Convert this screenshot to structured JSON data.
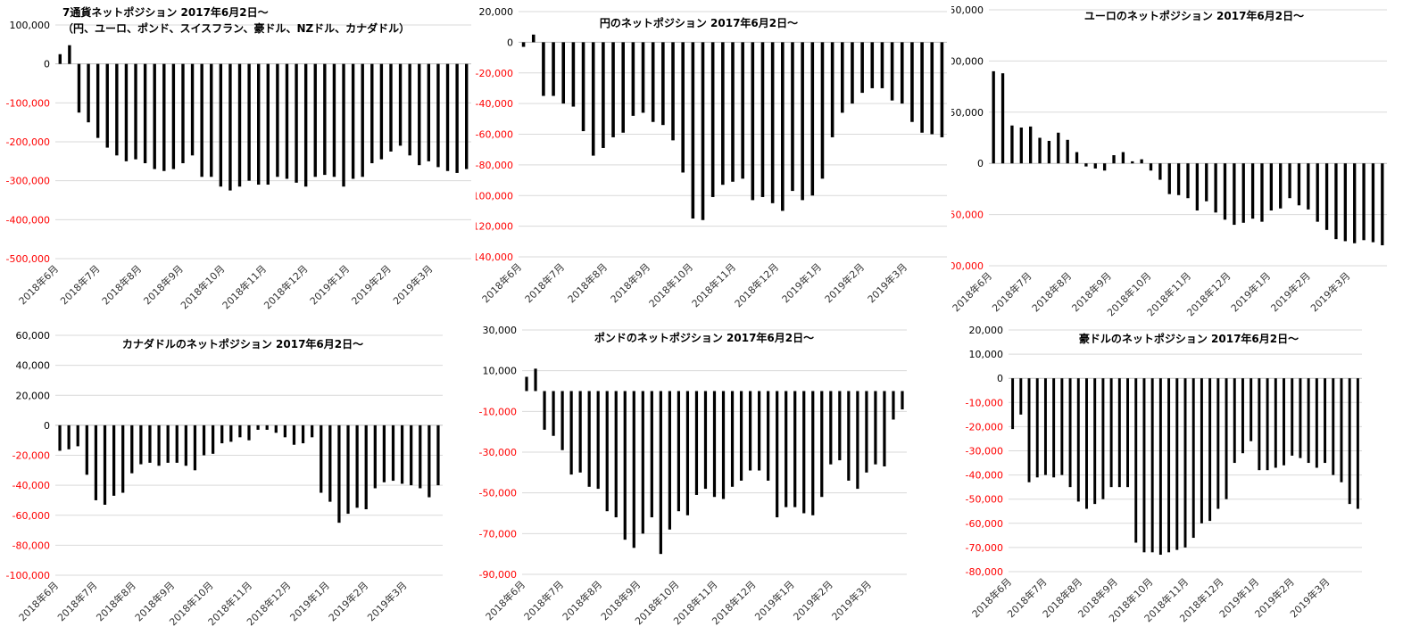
{
  "colors": {
    "bar": "#000000",
    "positive_tick": "#000000",
    "negative_tick": "#ff0000",
    "grid": "#d9d9d9"
  },
  "chart_data": [
    {
      "type": "bar",
      "title": "7通貨ネットポジション 2017年6月2日～",
      "subtitle": "（円、ユーロ、ポンド、スイスフラン、豪ドル、NZドル、カナダドル）",
      "ylim": [
        -500000,
        100000
      ],
      "yticks": [
        100000,
        0,
        -100000,
        -200000,
        -300000,
        -400000,
        -500000
      ],
      "ytick_labels": [
        "100,000",
        "0",
        "-100,000",
        "-200,000",
        "-300,000",
        "-400,000",
        "-500,000"
      ],
      "xtick_labels": [
        "2018年6月",
        "2018年7月",
        "2018年8月",
        "2018年9月",
        "2018年10月",
        "2018年11月",
        "2018年12月",
        "2019年1月",
        "2019年2月",
        "2019年3月"
      ],
      "values": [
        25000,
        48000,
        -125000,
        -150000,
        -190000,
        -215000,
        -235000,
        -250000,
        -245000,
        -255000,
        -270000,
        -275000,
        -270000,
        -255000,
        -235000,
        -290000,
        -290000,
        -315000,
        -325000,
        -315000,
        -300000,
        -310000,
        -310000,
        -290000,
        -295000,
        -305000,
        -315000,
        -290000,
        -285000,
        -290000,
        -315000,
        -295000,
        -290000,
        -255000,
        -245000,
        -225000,
        -210000,
        -235000,
        -260000,
        -250000,
        -265000,
        -275000,
        -280000,
        -270000
      ],
      "grid": true
    },
    {
      "type": "bar",
      "title": "円のネットポジション 2017年6月2日～",
      "ylim": [
        -140000,
        20000
      ],
      "yticks": [
        20000,
        0,
        -20000,
        -40000,
        -60000,
        -80000,
        -100000,
        -120000,
        -140000
      ],
      "ytick_labels": [
        "20,000",
        "0",
        "-20,000",
        "-40,000",
        "-60,000",
        "-80,000",
        "-100,000",
        "-120,000",
        "-140,000"
      ],
      "xtick_labels": [
        "2018年6月",
        "2018年7月",
        "2018年8月",
        "2018年9月",
        "2018年10月",
        "2018年11月",
        "2018年12月",
        "2019年1月",
        "2019年2月",
        "2019年3月"
      ],
      "values": [
        -3000,
        5000,
        -35000,
        -35000,
        -40000,
        -42000,
        -58000,
        -74000,
        -69000,
        -62000,
        -59000,
        -48000,
        -46000,
        -52000,
        -54000,
        -64000,
        -85000,
        -115000,
        -116000,
        -101000,
        -93000,
        -91000,
        -89000,
        -103000,
        -101000,
        -105000,
        -110000,
        -97000,
        -103000,
        -100000,
        -89000,
        -62000,
        -46000,
        -40000,
        -33000,
        -30000,
        -30000,
        -38000,
        -40000,
        -52000,
        -59000,
        -60000,
        -62000
      ],
      "grid": true
    },
    {
      "type": "bar",
      "title": "ユーロのネットポジション 2017年6月2日～",
      "ylim": [
        -100000,
        150000
      ],
      "yticks": [
        150000,
        100000,
        50000,
        0,
        -50000,
        -100000
      ],
      "ytick_labels": [
        "150,000",
        "100,000",
        "50,000",
        "0",
        "-50,000",
        "-100,000"
      ],
      "xtick_labels": [
        "2018年6月",
        "2018年7月",
        "2018年8月",
        "2018年9月",
        "2018年10月",
        "2018年11月",
        "2018年12月",
        "2019年1月",
        "2019年2月",
        "2019年3月"
      ],
      "values": [
        90000,
        88000,
        37000,
        35000,
        36000,
        25000,
        22000,
        30000,
        23000,
        11000,
        -3000,
        -5000,
        -7000,
        8000,
        11000,
        2000,
        4000,
        -7000,
        -16000,
        -30000,
        -31000,
        -34000,
        -46000,
        -37000,
        -48000,
        -55000,
        -60000,
        -58000,
        -54000,
        -57000,
        -46000,
        -44000,
        -34000,
        -41000,
        -45000,
        -57000,
        -65000,
        -74000,
        -76000,
        -78000,
        -75000,
        -77000,
        -80000
      ],
      "grid": true
    },
    {
      "type": "bar",
      "title": "カナダドルのネットポジション 2017年6月2日～",
      "ylim": [
        -100000,
        60000
      ],
      "yticks": [
        60000,
        40000,
        20000,
        0,
        -20000,
        -40000,
        -60000,
        -80000,
        -100000
      ],
      "ytick_labels": [
        "60,000",
        "40,000",
        "20,000",
        "0",
        "-20,000",
        "-40,000",
        "-60,000",
        "-80,000",
        "-100,000"
      ],
      "xtick_labels": [
        "2018年6月",
        "2018年7月",
        "2018年8月",
        "2018年9月",
        "2018年10月",
        "2018年11月",
        "2018年12月",
        "2019年1月",
        "2019年2月",
        "2019年3月"
      ],
      "values": [
        -17000,
        -16000,
        -14000,
        -33000,
        -50000,
        -53000,
        -47000,
        -45000,
        -32000,
        -26000,
        -25000,
        -27000,
        -25000,
        -25000,
        -27000,
        -30000,
        -20000,
        -19000,
        -12000,
        -11000,
        -8000,
        -10000,
        -3000,
        -3000,
        -5000,
        -8000,
        -13000,
        -12000,
        -8000,
        -45000,
        -51000,
        -65000,
        -59000,
        -55000,
        -56000,
        -42000,
        -38000,
        -37000,
        -39000,
        -40000,
        -42000,
        -48000,
        -40000
      ],
      "grid": true
    },
    {
      "type": "bar",
      "title": "ポンドのネットポジション 2017年6月2日～",
      "ylim": [
        -90000,
        30000
      ],
      "yticks": [
        30000,
        10000,
        -10000,
        -30000,
        -50000,
        -70000,
        -90000
      ],
      "ytick_labels": [
        "30,000",
        "10,000",
        "-10,000",
        "-30,000",
        "-50,000",
        "-70,000",
        "-90,000"
      ],
      "xtick_labels": [
        "2018年6月",
        "2018年7月",
        "2018年8月",
        "2018年9月",
        "2018年10月",
        "2018年11月",
        "2018年12月",
        "2019年1月",
        "2019年2月",
        "2019年3月"
      ],
      "values": [
        7000,
        11000,
        -19000,
        -22000,
        -29000,
        -41000,
        -40000,
        -47000,
        -48000,
        -59000,
        -62000,
        -73000,
        -77000,
        -70000,
        -62000,
        -80000,
        -68000,
        -59000,
        -61000,
        -51000,
        -48000,
        -52000,
        -53000,
        -47000,
        -44000,
        -39000,
        -39000,
        -44000,
        -62000,
        -57000,
        -57000,
        -60000,
        -61000,
        -52000,
        -36000,
        -34000,
        -44000,
        -48000,
        -40000,
        -36000,
        -37000,
        -14000,
        -9000
      ],
      "grid": true
    },
    {
      "type": "bar",
      "title": "豪ドルのネットポジション 2017年6月2日～",
      "ylim": [
        -80000,
        20000
      ],
      "yticks": [
        20000,
        10000,
        0,
        -10000,
        -20000,
        -30000,
        -40000,
        -50000,
        -60000,
        -70000,
        -80000
      ],
      "ytick_labels": [
        "20,000",
        "10,000",
        "0",
        "-10,000",
        "-20,000",
        "-30,000",
        "-40,000",
        "-50,000",
        "-60,000",
        "-70,000",
        "-80,000"
      ],
      "xtick_labels": [
        "2018年6月",
        "2018年7月",
        "2018年8月",
        "2018年9月",
        "2018年10月",
        "2018年11月",
        "2018年12月",
        "2019年1月",
        "2019年2月",
        "2019年3月"
      ],
      "values": [
        -21000,
        -15000,
        -43000,
        -41000,
        -40000,
        -41000,
        -40000,
        -45000,
        -51000,
        -54000,
        -52000,
        -50000,
        -45000,
        -45000,
        -45000,
        -68000,
        -72000,
        -72000,
        -73000,
        -72000,
        -71000,
        -70000,
        -66000,
        -60000,
        -59000,
        -54000,
        -50000,
        -35000,
        -31000,
        -26000,
        -38000,
        -38000,
        -37000,
        -36000,
        -32000,
        -33000,
        -35000,
        -37000,
        -35000,
        -40000,
        -43000,
        -52000,
        -54000
      ],
      "grid": true
    }
  ]
}
